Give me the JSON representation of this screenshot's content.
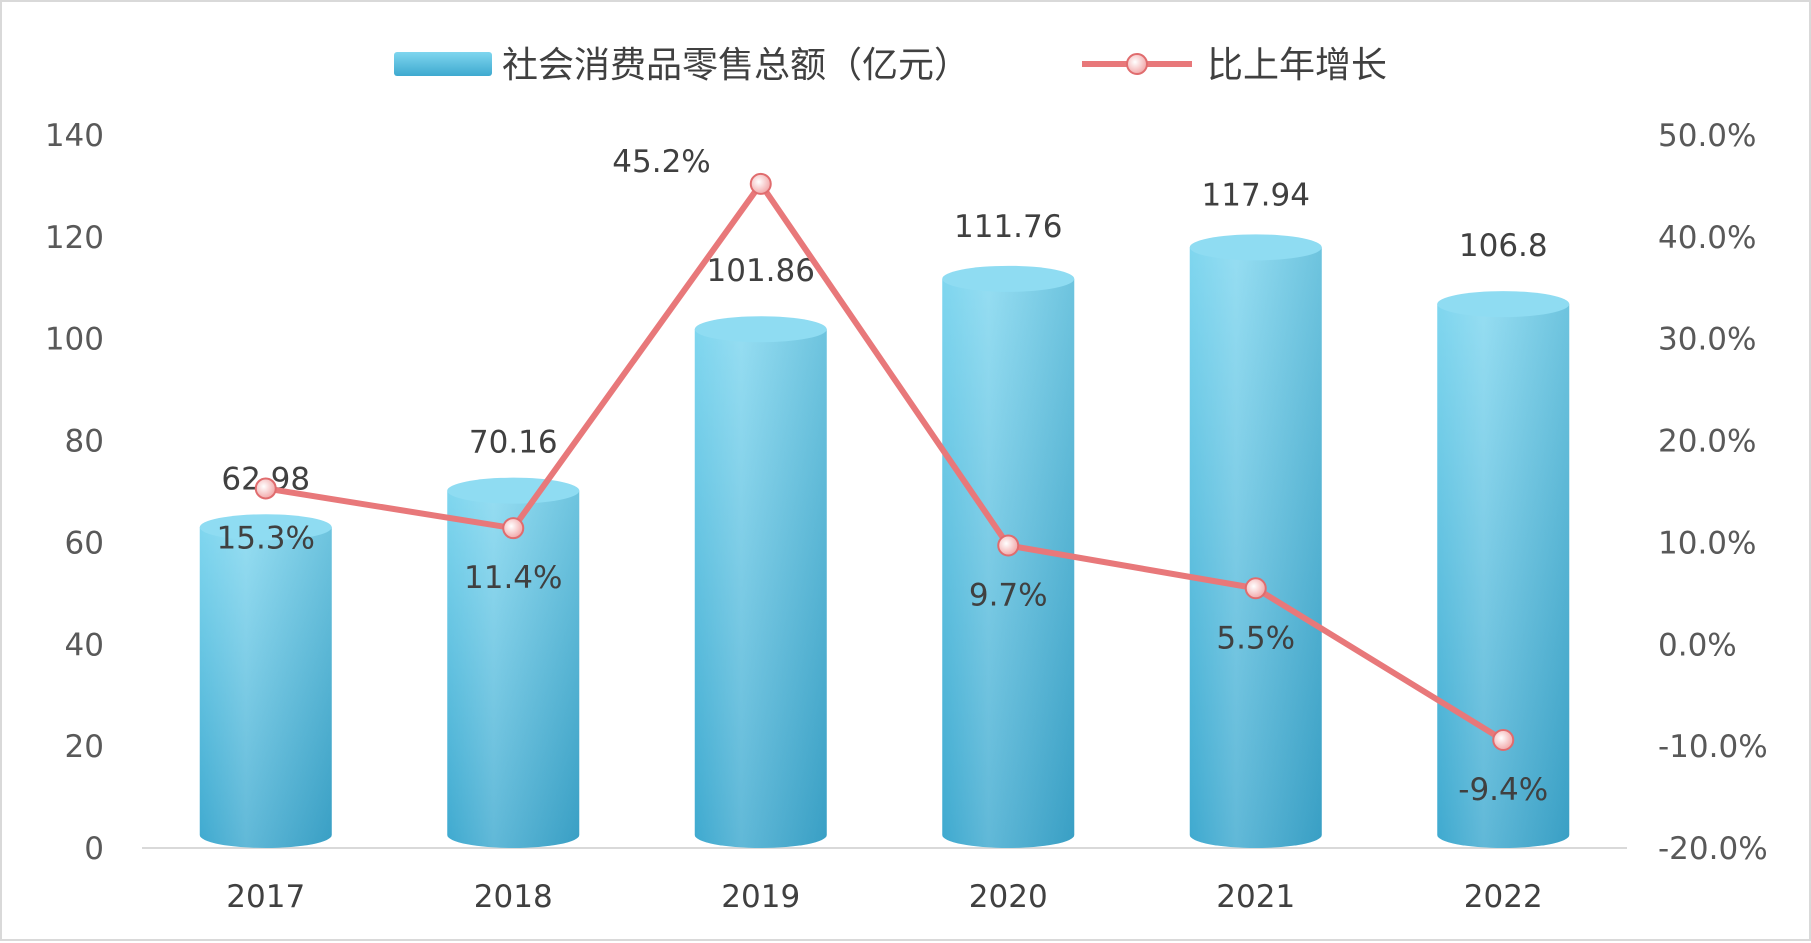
{
  "chart_data": {
    "type": "bar",
    "title": "",
    "categories": [
      "2017",
      "2018",
      "2019",
      "2020",
      "2021",
      "2022"
    ],
    "series": [
      {
        "name": "社会消费品零售总额（亿元）",
        "type": "bar",
        "axis": "left",
        "values": [
          62.98,
          70.16,
          101.86,
          111.76,
          117.94,
          106.8
        ],
        "labels": [
          "62.98",
          "70.16",
          "101.86",
          "111.76",
          "117.94",
          "106.8"
        ],
        "color": "#5bc0de"
      },
      {
        "name": "比上年增长",
        "type": "line",
        "axis": "right",
        "values": [
          15.3,
          11.4,
          45.2,
          9.7,
          5.5,
          -9.4
        ],
        "labels": [
          "15.3%",
          "11.4%",
          "45.2%",
          "9.7%",
          "5.5%",
          "-9.4%"
        ],
        "color": "#e8787a"
      }
    ],
    "y_left": {
      "ylim": [
        0,
        140
      ],
      "ticks": [
        "0",
        "20",
        "40",
        "60",
        "80",
        "100",
        "120",
        "140"
      ]
    },
    "y_right": {
      "ylim": [
        -20,
        50
      ],
      "ticks": [
        "-20.0%",
        "-10.0%",
        "0.0%",
        "10.0%",
        "20.0%",
        "30.0%",
        "40.0%",
        "50.0%"
      ]
    },
    "xlabel": "",
    "ylabel": "",
    "grid": false,
    "legend_position": "top"
  }
}
